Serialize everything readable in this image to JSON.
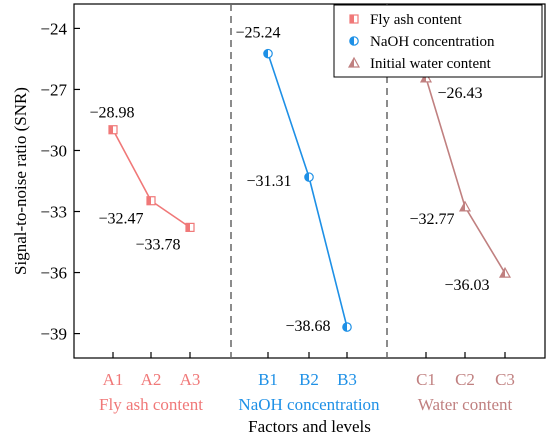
{
  "chart_data": {
    "type": "line",
    "title": "",
    "xlabel": "Factors and levels",
    "ylabel": "Signal-to-noise ratio (SNR)",
    "ylim": [
      -40.2,
      -22.8
    ],
    "yticks": [
      -24,
      -27,
      -30,
      -33,
      -36,
      -39
    ],
    "ytick_labels": [
      "−24",
      "−27",
      "−30",
      "−33",
      "−36",
      "−39"
    ],
    "grid": false,
    "legend_position": "top-right",
    "groups": [
      {
        "label": "Fly ash content",
        "color": "#f07878"
      },
      {
        "label": "NaOH concentration",
        "color": "#1e90e6"
      },
      {
        "label": "Water content",
        "color": "#c08080"
      }
    ],
    "series": [
      {
        "name": "Fly ash content",
        "color": "#f07878",
        "marker": "square-half",
        "categories": [
          "A1",
          "A2",
          "A3"
        ],
        "values": [
          -28.98,
          -32.47,
          -33.78
        ],
        "labels": [
          "−28.98",
          "−32.47",
          "−33.78"
        ]
      },
      {
        "name": "NaOH concentration",
        "color": "#1e90e6",
        "marker": "circle-half",
        "categories": [
          "B1",
          "B2",
          "B3"
        ],
        "values": [
          -25.24,
          -31.31,
          -38.68
        ],
        "labels": [
          "−25.24",
          "−31.31",
          "−38.68"
        ]
      },
      {
        "name": "Initial water content",
        "color": "#c08080",
        "marker": "triangle-half",
        "categories": [
          "C1",
          "C2",
          "C3"
        ],
        "values": [
          -26.43,
          -32.77,
          -36.03
        ],
        "labels": [
          "−26.43",
          "−32.77",
          "−36.03"
        ]
      }
    ]
  }
}
